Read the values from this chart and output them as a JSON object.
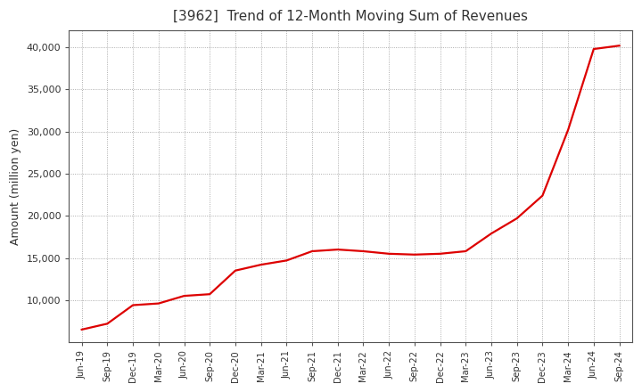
{
  "title": "[3962]  Trend of 12-Month Moving Sum of Revenues",
  "ylabel": "Amount (million yen)",
  "line_color": "#dd0000",
  "background_color": "#ffffff",
  "plot_bg_color": "#ffffff",
  "grid_color": "#999999",
  "ylim": [
    5000,
    42000
  ],
  "yticks": [
    10000,
    15000,
    20000,
    25000,
    30000,
    35000,
    40000
  ],
  "title_color": "#333333",
  "x_labels": [
    "Jun-19",
    "Sep-19",
    "Dec-19",
    "Mar-20",
    "Jun-20",
    "Sep-20",
    "Dec-20",
    "Mar-21",
    "Jun-21",
    "Sep-21",
    "Dec-21",
    "Mar-22",
    "Jun-22",
    "Sep-22",
    "Dec-22",
    "Mar-23",
    "Jun-23",
    "Sep-23",
    "Dec-23",
    "Mar-24",
    "Jun-24",
    "Sep-24"
  ],
  "values": [
    6500,
    7200,
    9400,
    9600,
    10500,
    10700,
    13500,
    14200,
    14700,
    15800,
    16000,
    15800,
    15500,
    15400,
    15500,
    15800,
    17900,
    19700,
    22400,
    30200,
    39800,
    40200
  ]
}
